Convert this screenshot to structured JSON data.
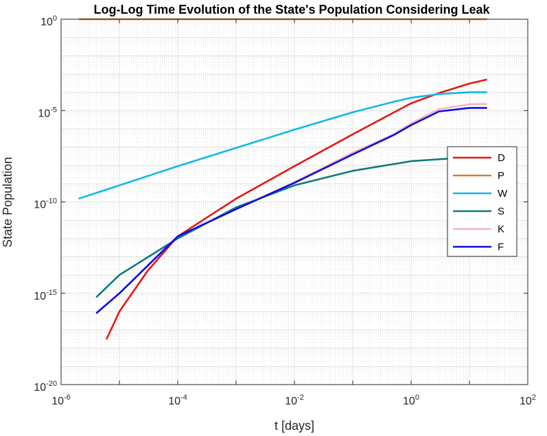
{
  "chart_data": {
    "type": "line",
    "title": "Log-Log Time Evolution of the State's Population Considering Leak",
    "xlabel": "t [days]",
    "ylabel": "State Population",
    "xscale": "log",
    "yscale": "log",
    "xlim": [
      1e-06,
      100
    ],
    "ylim": [
      1e-20,
      1
    ],
    "grid": true,
    "minor_grid": true,
    "legend_position": "right",
    "x_ticks": [
      {
        "value": 1e-06,
        "base": "10",
        "exp": "-6"
      },
      {
        "value": 0.0001,
        "base": "10",
        "exp": "-4"
      },
      {
        "value": 0.01,
        "base": "10",
        "exp": "-2"
      },
      {
        "value": 1,
        "base": "10",
        "exp": "0"
      },
      {
        "value": 100,
        "base": "10",
        "exp": "2"
      }
    ],
    "y_ticks": [
      {
        "value": 1,
        "base": "10",
        "exp": "0"
      },
      {
        "value": 1e-05,
        "base": "10",
        "exp": "-5"
      },
      {
        "value": 1e-10,
        "base": "10",
        "exp": "-10"
      },
      {
        "value": 1e-15,
        "base": "10",
        "exp": "-15"
      },
      {
        "value": 1e-20,
        "base": "10",
        "exp": "-20"
      }
    ],
    "series": [
      {
        "name": "D",
        "color": "#E8150F",
        "x": [
          6e-06,
          1e-05,
          3e-05,
          0.0001,
          0.001,
          0.01,
          0.1,
          1,
          3,
          10,
          20
        ],
        "y": [
          3e-18,
          1e-16,
          1.6e-14,
          1.3e-12,
          1.5e-10,
          9e-09,
          5e-07,
          2.5e-05,
          9e-05,
          0.0003,
          0.0005
        ]
      },
      {
        "name": "P",
        "color": "#D97B2A",
        "x": [
          2e-06,
          1e-05,
          0.001,
          0.1,
          1,
          10,
          20
        ],
        "y": [
          1,
          1,
          1,
          1,
          1,
          1,
          1
        ]
      },
      {
        "name": "W",
        "color": "#11B8E8",
        "x": [
          2e-06,
          1e-05,
          0.0001,
          0.001,
          0.01,
          0.1,
          0.5,
          1,
          3,
          10,
          20
        ],
        "y": [
          1.5e-10,
          8e-10,
          9e-09,
          9e-08,
          9e-07,
          8e-06,
          3e-05,
          5e-05,
          8e-05,
          0.0001,
          0.0001
        ]
      },
      {
        "name": "S",
        "color": "#0D7A7A",
        "x": [
          4e-06,
          1e-05,
          0.0001,
          0.001,
          0.01,
          0.1,
          1,
          5,
          10,
          20
        ],
        "y": [
          6e-16,
          1e-14,
          1e-12,
          5e-11,
          8e-10,
          5e-09,
          1.7e-08,
          2.4e-08,
          2.5e-08,
          2.5e-08
        ]
      },
      {
        "name": "K",
        "color": "#F7B3C3",
        "x": [
          4e-06,
          1e-05,
          0.0001,
          0.001,
          0.01,
          0.1,
          0.5,
          1,
          3,
          10,
          20
        ],
        "y": [
          8e-17,
          1e-15,
          1.3e-12,
          4e-11,
          1.2e-09,
          5e-08,
          5e-07,
          2e-06,
          1.2e-05,
          2.2e-05,
          2.3e-05
        ]
      },
      {
        "name": "F",
        "color": "#0A0AE6",
        "x": [
          4e-06,
          1e-05,
          0.0001,
          0.001,
          0.01,
          0.1,
          0.5,
          1,
          3,
          10,
          20
        ],
        "y": [
          8e-17,
          1e-15,
          1.3e-12,
          4e-11,
          1.1e-09,
          4e-08,
          4.5e-07,
          1.6e-06,
          9e-06,
          1.4e-05,
          1.4e-05
        ]
      }
    ]
  }
}
